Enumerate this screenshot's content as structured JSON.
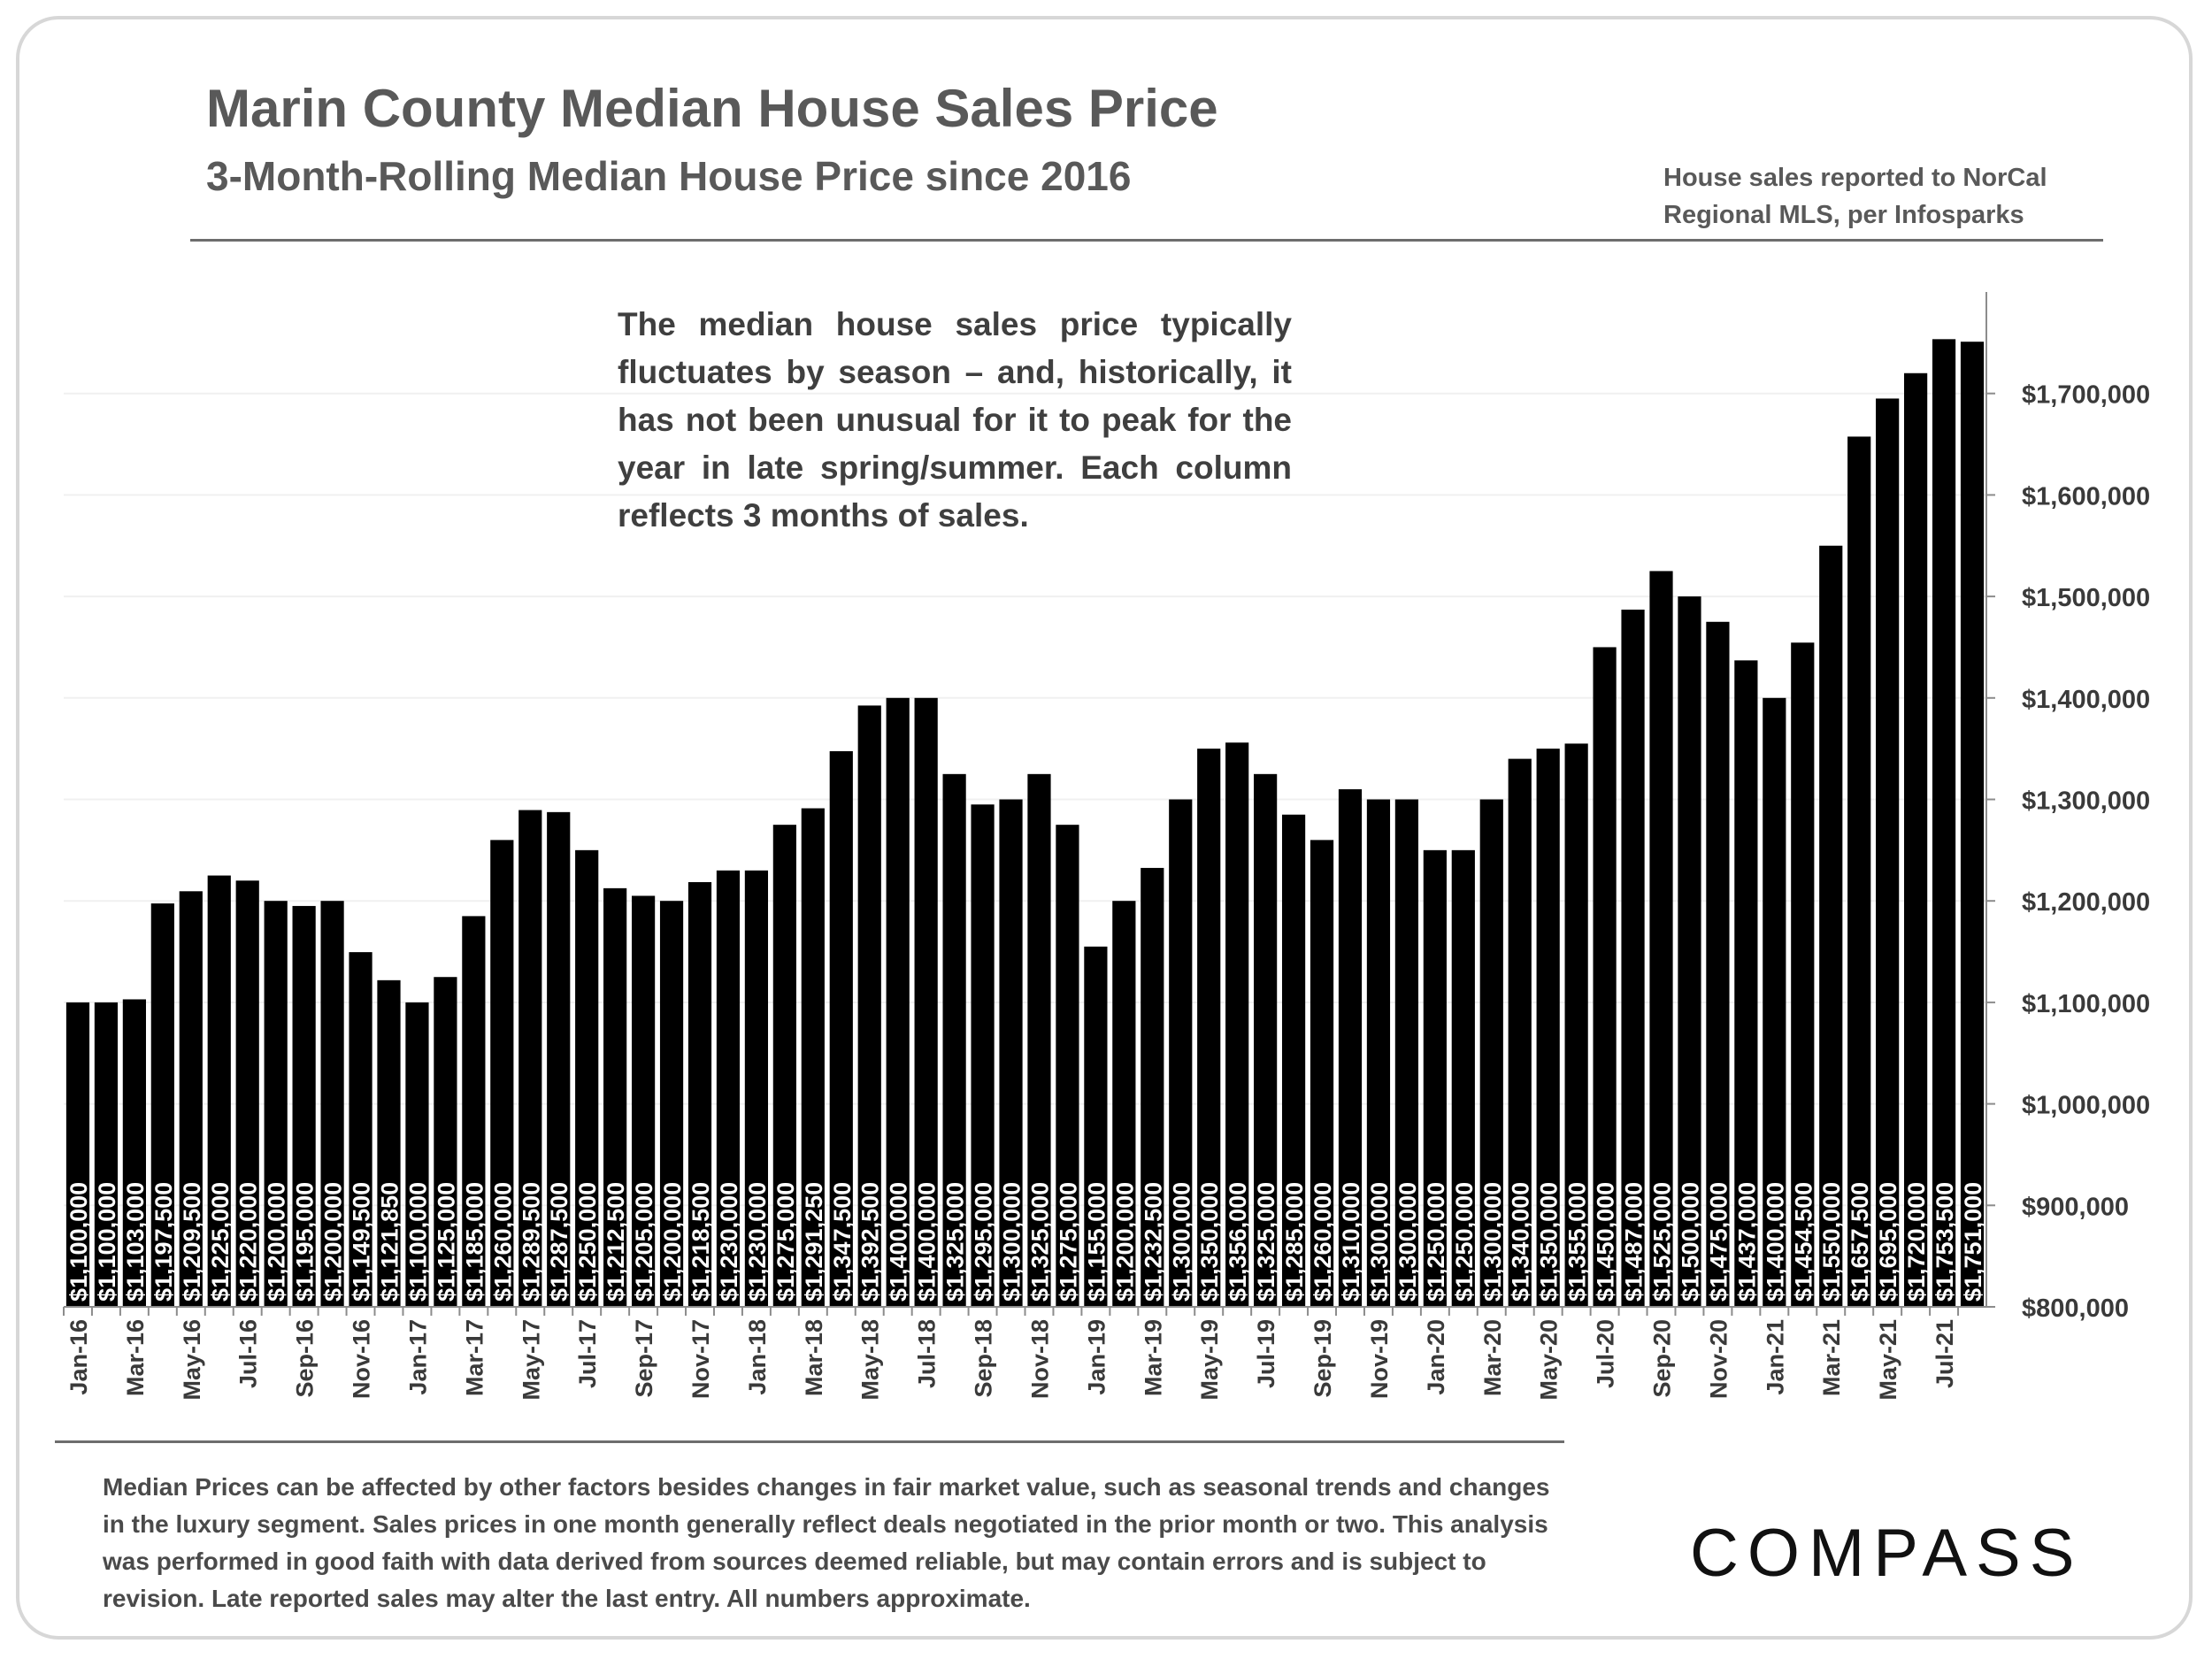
{
  "header": {
    "title": "Marin County Median House Sales Price",
    "subtitle": "3-Month-Rolling Median House Price since 2016",
    "source_line1": "House sales reported to NorCal",
    "source_line2": "Regional MLS, per Infosparks"
  },
  "annotation": "The median house sales price typically fluctuates by season – and, historically, it has not been unusual for it to peak for the year in late spring/summer. Each column reflects 3 months of sales.",
  "footnote": "Median Prices can be affected by other factors besides changes in fair market value, such as seasonal trends and changes in the luxury segment. Sales prices in one month generally reflect deals negotiated in the prior month or two. This analysis was performed in good faith with data derived from sources deemed reliable, but may contain errors and is subject to revision. Late reported sales may alter the last entry. All numbers approximate.",
  "brand": {
    "logo_text": "COMPASS"
  },
  "colors": {
    "bar": "#000000",
    "bar_label": "#ffffff",
    "text": "#595959",
    "gridline": "#f0f0f0"
  },
  "chart_data": {
    "type": "bar",
    "title": "Marin County Median House Sales Price",
    "subtitle": "3-Month-Rolling Median House Price since 2016",
    "xlabel": "",
    "ylabel": "",
    "ylim": [
      800000,
      1800000
    ],
    "y_axis_side": "right",
    "y_ticks": [
      800000,
      900000,
      1000000,
      1100000,
      1200000,
      1300000,
      1400000,
      1500000,
      1600000,
      1700000
    ],
    "y_tick_labels": [
      "$800,000",
      "$900,000",
      "$1,000,000",
      "$1,100,000",
      "$1,200,000",
      "$1,300,000",
      "$1,400,000",
      "$1,500,000",
      "$1,600,000",
      "$1,700,000"
    ],
    "grid": true,
    "categories": [
      "Jan-16",
      "Feb-16",
      "Mar-16",
      "Apr-16",
      "May-16",
      "Jun-16",
      "Jul-16",
      "Aug-16",
      "Sep-16",
      "Oct-16",
      "Nov-16",
      "Dec-16",
      "Jan-17",
      "Feb-17",
      "Mar-17",
      "Apr-17",
      "May-17",
      "Jun-17",
      "Jul-17",
      "Aug-17",
      "Sep-17",
      "Oct-17",
      "Nov-17",
      "Dec-17",
      "Jan-18",
      "Feb-18",
      "Mar-18",
      "Apr-18",
      "May-18",
      "Jun-18",
      "Jul-18",
      "Aug-18",
      "Sep-18",
      "Oct-18",
      "Nov-18",
      "Dec-18",
      "Jan-19",
      "Feb-19",
      "Mar-19",
      "Apr-19",
      "May-19",
      "Jun-19",
      "Jul-19",
      "Aug-19",
      "Sep-19",
      "Oct-19",
      "Nov-19",
      "Dec-19",
      "Jan-20",
      "Feb-20",
      "Mar-20",
      "Apr-20",
      "May-20",
      "Jun-20",
      "Jul-20",
      "Aug-20",
      "Sep-20",
      "Oct-20",
      "Nov-20",
      "Dec-20",
      "Jan-21",
      "Feb-21",
      "Mar-21",
      "Apr-21",
      "May-21",
      "Jun-21",
      "Jul-21",
      "Aug-21"
    ],
    "x_tick_labels": [
      "Jan-16",
      "Mar-16",
      "May-16",
      "Jul-16",
      "Sep-16",
      "Nov-16",
      "Jan-17",
      "Mar-17",
      "May-17",
      "Jul-17",
      "Sep-17",
      "Nov-17",
      "Jan-18",
      "Mar-18",
      "May-18",
      "Jul-18",
      "Sep-18",
      "Nov-18",
      "Jan-19",
      "Mar-19",
      "May-19",
      "Jul-19",
      "Sep-19",
      "Nov-19",
      "Jan-20",
      "Mar-20",
      "May-20",
      "Jul-20",
      "Sep-20",
      "Nov-20",
      "Jan-21",
      "Mar-21",
      "May-21",
      "Jul-21"
    ],
    "values": [
      1100000,
      1100000,
      1103000,
      1197500,
      1209500,
      1225000,
      1220000,
      1200000,
      1195000,
      1200000,
      1149500,
      1121850,
      1100000,
      1125000,
      1185000,
      1260000,
      1289500,
      1287500,
      1250000,
      1212500,
      1205000,
      1200000,
      1218500,
      1230000,
      1230000,
      1275000,
      1291250,
      1347500,
      1392500,
      1400000,
      1400000,
      1325000,
      1295000,
      1300000,
      1325000,
      1275000,
      1155000,
      1200000,
      1232500,
      1300000,
      1350000,
      1356000,
      1325000,
      1285000,
      1260000,
      1310000,
      1300000,
      1300000,
      1250000,
      1250000,
      1300000,
      1340000,
      1350000,
      1355000,
      1450000,
      1487000,
      1525000,
      1500000,
      1475000,
      1437000,
      1400000,
      1454500,
      1550000,
      1657500,
      1695000,
      1720000,
      1753500,
      1751000
    ],
    "data_labels": [
      "$1,100,000",
      "$1,100,000",
      "$1,103,000",
      "$1,197,500",
      "$1,209,500",
      "$1,225,000",
      "$1,220,000",
      "$1,200,000",
      "$1,195,000",
      "$1,200,000",
      "$1,149,500",
      "$1,121,850",
      "$1,100,000",
      "$1,125,000",
      "$1,185,000",
      "$1,260,000",
      "$1,289,500",
      "$1,287,500",
      "$1,250,000",
      "$1,212,500",
      "$1,205,000",
      "$1,200,000",
      "$1,218,500",
      "$1,230,000",
      "$1,230,000",
      "$1,275,000",
      "$1,291,250",
      "$1,347,500",
      "$1,392,500",
      "$1,400,000",
      "$1,400,000",
      "$1,325,000",
      "$1,295,000",
      "$1,300,000",
      "$1,325,000",
      "$1,275,000",
      "$1,155,000",
      "$1,200,000",
      "$1,232,500",
      "$1,300,000",
      "$1,350,000",
      "$1,356,000",
      "$1,325,000",
      "$1,285,000",
      "$1,260,000",
      "$1,310,000",
      "$1,300,000",
      "$1,300,000",
      "$1,250,000",
      "$1,250,000",
      "$1,300,000",
      "$1,340,000",
      "$1,350,000",
      "$1,355,000",
      "$1,450,000",
      "$1,487,000",
      "$1,525,000",
      "$1,500,000",
      "$1,475,000",
      "$1,437,000",
      "$1,400,000",
      "$1,454,500",
      "$1,550,000",
      "$1,657,500",
      "$1,695,000",
      "$1,720,000",
      "$1,753,500",
      "$1,751,000"
    ]
  }
}
